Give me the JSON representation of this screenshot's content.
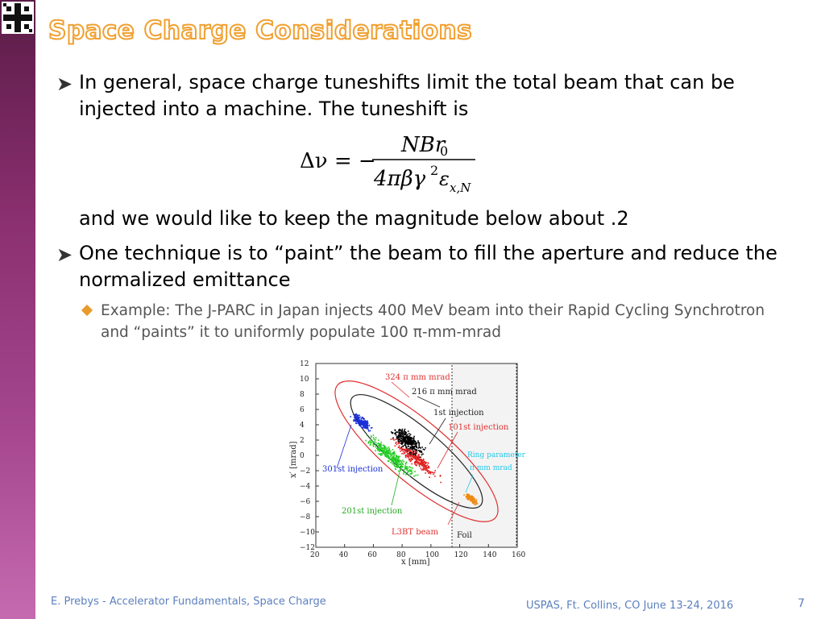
{
  "slide": {
    "title": "Space Charge Considerations",
    "bullets": [
      {
        "text": "In general, space charge tuneshifts limit the total beam that can be injected into a machine.  The tuneshift is"
      },
      {
        "text": "and we would like to keep the magnitude below about .2"
      },
      {
        "text": "One technique is to “paint” the beam to fill the aperture and reduce the normalized emittance"
      }
    ],
    "sub_bullet": "Example:  The J-PARC in Japan injects 400 MeV beam into their Rapid Cycling Synchrotron and “paints” it to uniformly populate 100 π-mm-mrad",
    "formula": {
      "lhs": "Δν = −",
      "numerator": "NBr",
      "numerator_sub": "0",
      "denominator": "4πβγ",
      "denominator_sup": "2",
      "denominator_eps": "ε",
      "denominator_sub": "x,N"
    },
    "figure": {
      "xlabel": "x [mm]",
      "ylabel": "x′ [mrad]",
      "xticks": [
        "20",
        "40",
        "60",
        "80",
        "100",
        "120",
        "140",
        "160"
      ],
      "yticks": [
        "12",
        "10",
        "8",
        "6",
        "4",
        "2",
        "0",
        "−2",
        "−4",
        "−6",
        "−8",
        "−10",
        "−12"
      ],
      "labels": {
        "outer": "324 π mm mrad",
        "inner": "216 π mm mrad",
        "first": "1st injection",
        "i101": "101st injection",
        "i301": "301st injection",
        "i201": "201st injection",
        "l3bt": "L3BT beam",
        "foil": "Foil",
        "ring1": "Ring parameter",
        "ring2": "π mm mrad"
      },
      "colors": {
        "outer": "#e03030",
        "inner": "#222222",
        "blue": "#1a2fd6",
        "green": "#22cc22",
        "red": "#e02020",
        "black": "#000000",
        "orange": "#ee8a10",
        "cyan": "#22c8e8"
      }
    },
    "footer_left": "E. Prebys - Accelerator Fundamentals, Space Charge",
    "footer_center": "USPAS, Ft. Collins, CO June 13-24, 2016",
    "page_number": "7"
  }
}
